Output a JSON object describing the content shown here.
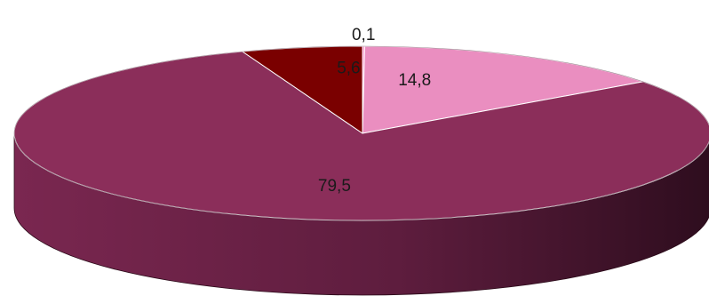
{
  "chart_data": {
    "type": "pie",
    "style": "3d",
    "title": "",
    "legend": "none",
    "decimal_separator": ",",
    "slices": [
      {
        "label": "0,1",
        "value": 0.1,
        "color": "#ff8ec8"
      },
      {
        "label": "14,8",
        "value": 14.8,
        "color": "#ea8ec0"
      },
      {
        "label": "79,5",
        "value": 79.5,
        "color": "#8b2e5a"
      },
      {
        "label": "5,6",
        "value": 5.6,
        "color": "#7a0000"
      }
    ]
  }
}
